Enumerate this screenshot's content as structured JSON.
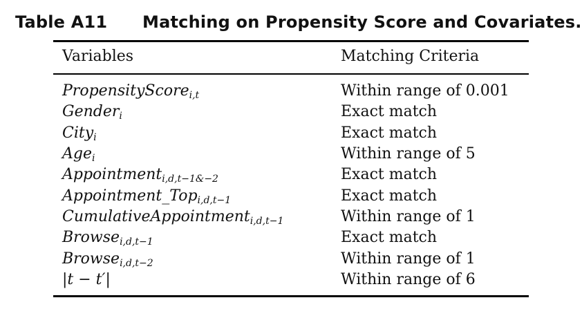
{
  "caption": {
    "label": "Table A11",
    "title": "Matching on Propensity Score and Covariates."
  },
  "table": {
    "headers": [
      "Variables",
      "Matching Criteria"
    ],
    "rows": [
      {
        "var": "PropensityScore",
        "sub": "i,t",
        "criteria": "Within range of 0.001"
      },
      {
        "var": "Gender",
        "sub": "i",
        "criteria": "Exact match"
      },
      {
        "var": "City",
        "sub": "i",
        "criteria": "Exact match"
      },
      {
        "var": "Age",
        "sub": "i",
        "criteria": "Within range of 5"
      },
      {
        "var": "Appointment",
        "sub": "i,d,t−1&−2",
        "criteria": "Exact match"
      },
      {
        "var": "Appointment_Top",
        "sub": "i,d,t−1",
        "criteria": "Exact match"
      },
      {
        "var": "CumulativeAppointment",
        "sub": "i,d,t−1",
        "criteria": "Within range of 1"
      },
      {
        "var": "Browse",
        "sub": "i,d,t−1",
        "criteria": "Exact match"
      },
      {
        "var": "Browse",
        "sub": "i,d,t−2",
        "criteria": "Within range of 1"
      },
      {
        "var": "|t − t′|",
        "sub": "",
        "criteria": "Within range of 6"
      }
    ]
  }
}
